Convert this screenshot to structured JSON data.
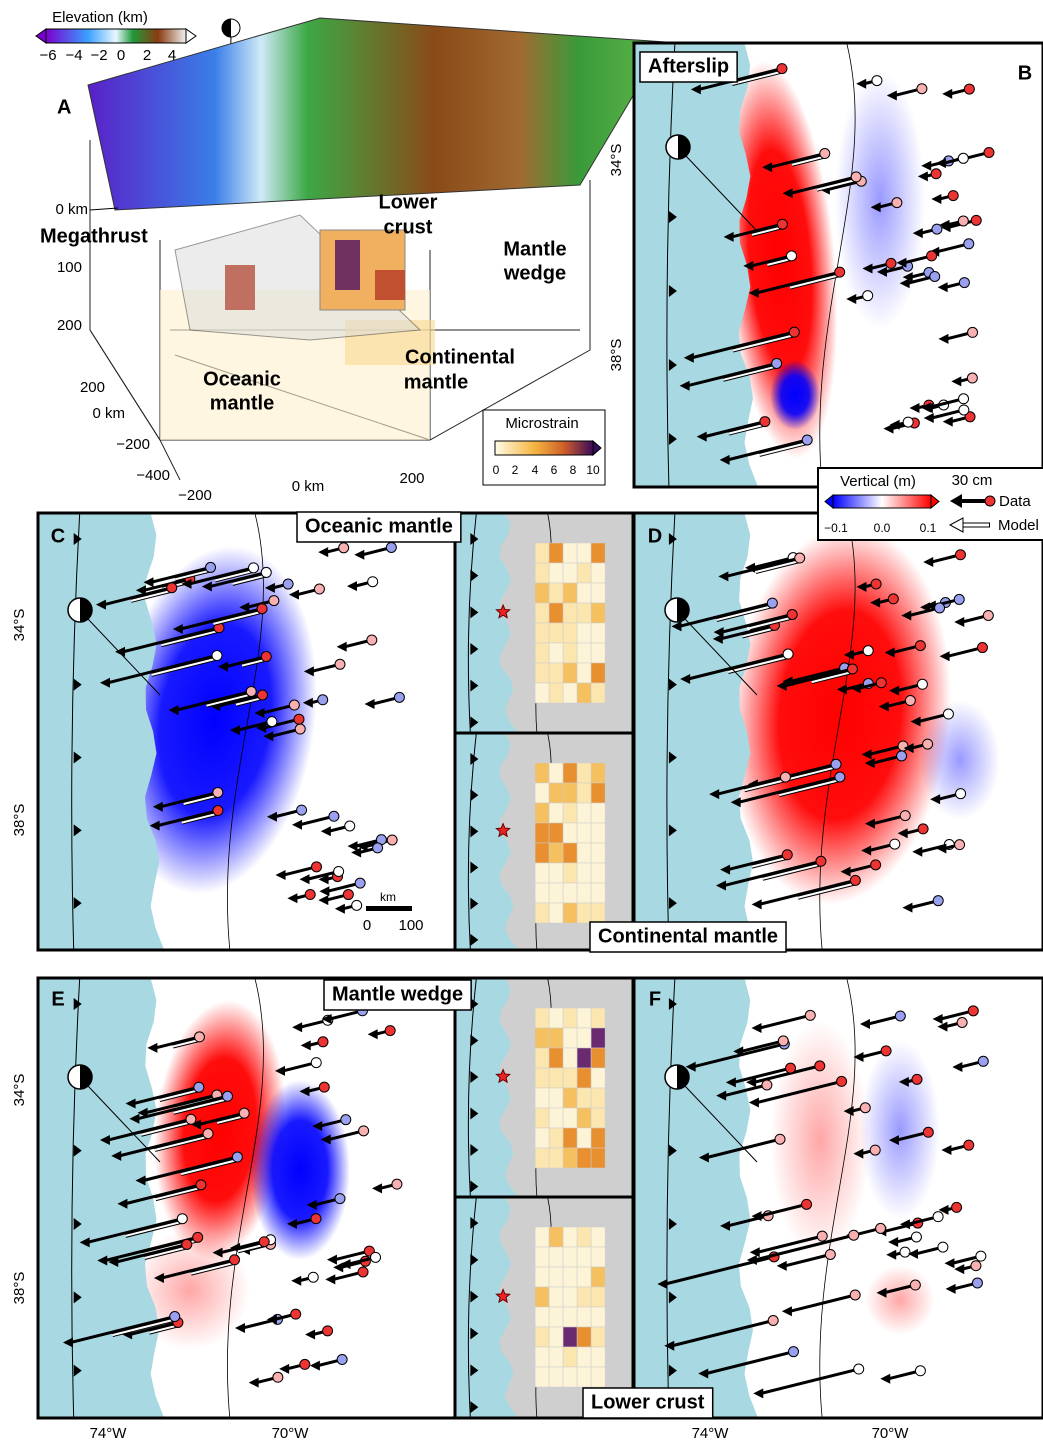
{
  "panel_a": {
    "label": "A",
    "elevation_title": "Elevation (km)",
    "elevation_ticks": [
      "−6",
      "−4",
      "−2",
      "0",
      "2",
      "4"
    ],
    "depth_ticks": [
      "0 km",
      "100",
      "200"
    ],
    "y_ticks": [
      "200",
      "0 km",
      "−200",
      "−400"
    ],
    "x_ticks": [
      "−200",
      "0 km",
      "200"
    ],
    "regions": {
      "megathrust": "Megathrust",
      "lower_crust": [
        "Lower",
        "crust"
      ],
      "mantle_wedge": [
        "Mantle",
        "wedge"
      ],
      "continental_mantle": [
        "Continental",
        "mantle"
      ],
      "oceanic_mantle": [
        "Oceanic",
        "mantle"
      ]
    },
    "strain_title": "Microstrain",
    "strain_ticks": [
      "0",
      "2",
      "4",
      "6",
      "8",
      "10"
    ]
  },
  "legend": {
    "title": "Vertical (m)",
    "ticks": [
      "−0.1",
      "0.0",
      "0.1"
    ],
    "scale": "30 cm",
    "data": "Data",
    "model": "Model"
  },
  "panels": [
    {
      "label": "B",
      "title": "Afterslip"
    },
    {
      "label": "C",
      "title": "Oceanic mantle"
    },
    {
      "label": "D",
      "title": "Continental mantle"
    },
    {
      "label": "E",
      "title": "Mantle wedge"
    },
    {
      "label": "F",
      "title": "Lower crust"
    }
  ],
  "latitudes": [
    "34°S",
    "38°S"
  ],
  "longitudes": [
    "74°W",
    "70°W"
  ],
  "scale_bar": {
    "unit": "km",
    "ticks": [
      "0",
      "100"
    ]
  }
}
